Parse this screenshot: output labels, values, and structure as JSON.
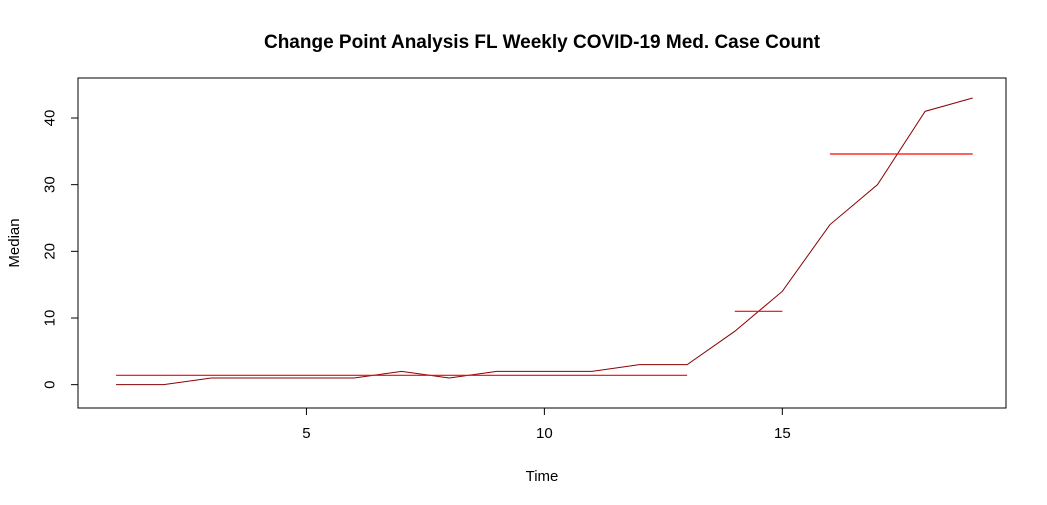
{
  "chart_data": {
    "type": "line",
    "title": "Change Point Analysis FL Weekly COVID-19 Med. Case Count",
    "xlabel": "Time",
    "ylabel": "Median",
    "xlim": [
      0.2,
      19.7
    ],
    "ylim": [
      -3.5,
      46
    ],
    "x_ticks": [
      5,
      10,
      15
    ],
    "y_ticks": [
      0,
      10,
      20,
      30,
      40
    ],
    "grid": false,
    "series": [
      {
        "color": "#8B0000",
        "x": [
          1,
          2,
          3,
          4,
          5,
          6,
          7,
          8,
          9,
          10,
          11,
          12,
          13,
          14,
          15,
          16,
          17,
          18,
          19
        ],
        "y": [
          0,
          0,
          1,
          1,
          1,
          1,
          2,
          1,
          2,
          2,
          2,
          3,
          3,
          8,
          14,
          24,
          30,
          41,
          43
        ]
      }
    ],
    "change_point_segments": [
      {
        "x_start": 1,
        "x_end": 13,
        "y": 1.4
      },
      {
        "x_start": 14,
        "x_end": 15,
        "y": 11
      },
      {
        "x_start": 16,
        "x_end": 19,
        "y": 34.6
      }
    ],
    "segment_color": "#FF0000"
  }
}
